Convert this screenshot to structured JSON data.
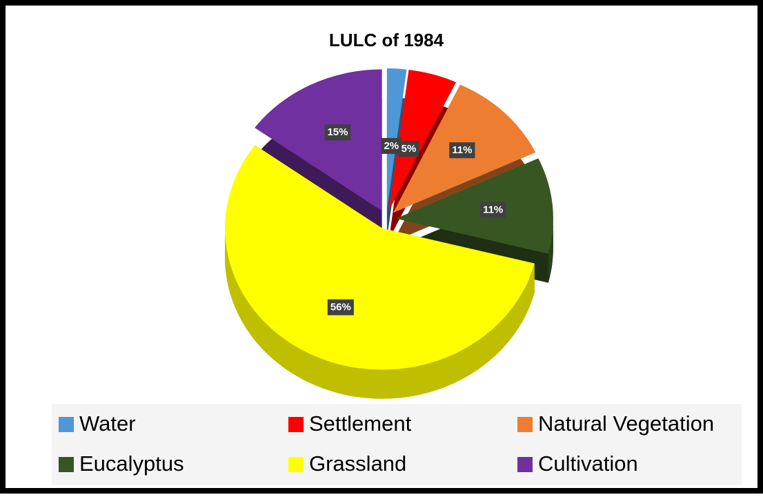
{
  "chart_data": {
    "type": "pie",
    "title": "LULC of 1984",
    "categories": [
      "Water",
      "Settlement",
      "Natural Vegetation",
      "Eucalyptus",
      "Grassland",
      "Cultivation"
    ],
    "values": [
      2,
      5,
      11,
      11,
      56,
      15
    ],
    "value_labels": [
      "2%",
      "5%",
      "11%",
      "11%",
      "56%",
      "15%"
    ],
    "colors": [
      "#4f97d6",
      "#ff0000",
      "#ed7d31",
      "#375623",
      "#ffff00",
      "#7030a0"
    ],
    "legend": "bottom"
  }
}
